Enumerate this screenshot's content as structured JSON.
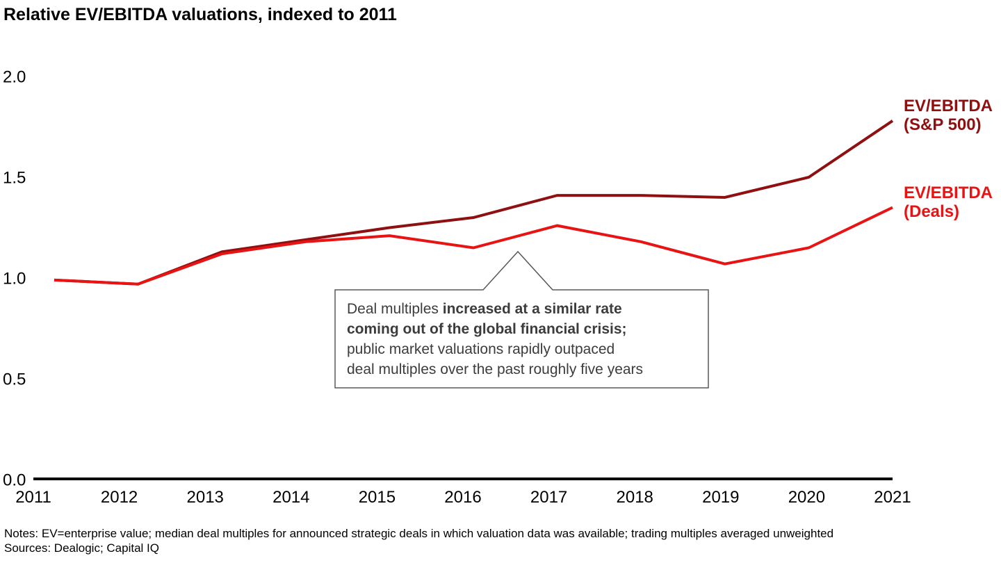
{
  "title": "Relative EV/EBITDA valuations, indexed to 2011",
  "chart_data": {
    "type": "line",
    "x": [
      2011,
      2012,
      2013,
      2014,
      2015,
      2016,
      2017,
      2018,
      2019,
      2020,
      2021
    ],
    "series": [
      {
        "name": "EV/EBITDA (S&P 500)",
        "label_lines": [
          "EV/EBITDA",
          "(S&P 500)"
        ],
        "color": "#8F1010",
        "values": [
          0.99,
          0.97,
          1.13,
          1.19,
          1.25,
          1.3,
          1.41,
          1.41,
          1.4,
          1.5,
          1.78
        ]
      },
      {
        "name": "EV/EBITDA (Deals)",
        "label_lines": [
          "EV/EBITDA",
          "(Deals)"
        ],
        "color": "#E81313",
        "values": [
          0.99,
          0.97,
          1.12,
          1.18,
          1.21,
          1.15,
          1.26,
          1.18,
          1.07,
          1.15,
          1.35
        ]
      }
    ],
    "ylim": [
      0.0,
      2.0
    ],
    "yticks": [
      {
        "v": 0.0,
        "label": "0.0"
      },
      {
        "v": 0.5,
        "label": "0.5"
      },
      {
        "v": 1.0,
        "label": "1.0"
      },
      {
        "v": 1.5,
        "label": "1.5"
      },
      {
        "v": 2.0,
        "label": "2.0"
      }
    ],
    "grid": false,
    "legend_position": "right of line ends",
    "axis_color": "#000000"
  },
  "callout": {
    "border_color": "#58585a",
    "lines": [
      {
        "runs": [
          {
            "text": "Deal multiples ",
            "bold": false
          },
          {
            "text": "increased at a similar rate",
            "bold": true
          }
        ]
      },
      {
        "runs": [
          {
            "text": "coming out of the global financial crisis;",
            "bold": true
          }
        ]
      },
      {
        "runs": [
          {
            "text": "public market valuations rapidly outpaced",
            "bold": false
          }
        ]
      },
      {
        "runs": [
          {
            "text": "deal multiples over the past roughly five years",
            "bold": false
          }
        ]
      }
    ]
  },
  "notes": "Notes: EV=enterprise value; median deal multiples for announced strategic deals in which valuation data was available; trading multiples averaged unweighted",
  "sources": "Sources: Dealogic; Capital IQ"
}
